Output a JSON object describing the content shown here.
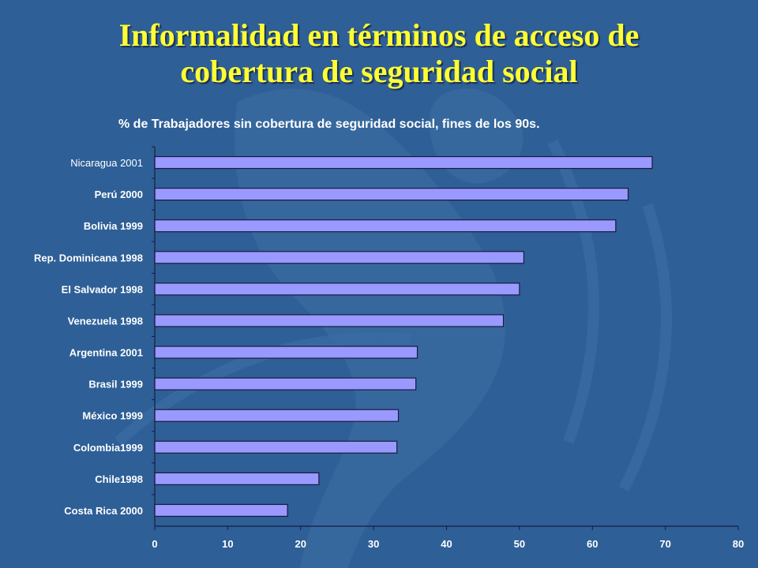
{
  "title_lines": [
    "Informalidad en términos de acceso de",
    "cobertura de seguridad social"
  ],
  "chart_data": {
    "type": "bar",
    "orientation": "horizontal",
    "title": "% de Trabajadores sin cobertura de seguridad social, fines de los 90s.",
    "categories": [
      "Nicaragua 2001",
      "Perú 2000",
      "Bolivia 1999",
      "Rep. Dominicana  1998",
      "El Salvador  1998",
      "Venezuela  1998",
      "Argentina  2001",
      "Brasil  1999",
      "México  1999",
      "Colombia1999",
      "Chile1998",
      "Costa Rica  2000"
    ],
    "values": [
      68.2,
      64.9,
      63.2,
      50.6,
      50.0,
      47.8,
      36.0,
      35.8,
      33.4,
      33.2,
      22.5,
      18.2
    ],
    "xlim": [
      0,
      80
    ],
    "xticks": [
      "0",
      "10",
      "20",
      "30",
      "40",
      "50",
      "60",
      "70",
      "80"
    ],
    "xlabel": "",
    "ylabel": "",
    "grid": false,
    "colors": {
      "bar_fill": "#9999ff",
      "bar_stroke": "#1a1a40",
      "axis": "#1a1a40"
    }
  }
}
